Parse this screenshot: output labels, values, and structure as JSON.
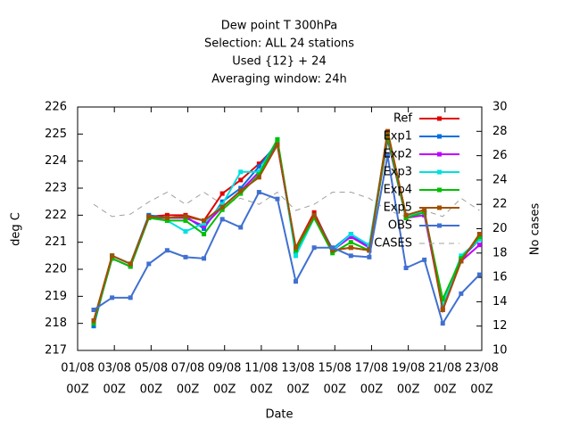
{
  "chart_data": {
    "type": "line",
    "title": [
      "Dew point T 300hPa",
      "Selection: ALL      24 stations",
      "Used {12} + 24",
      "Averaging window: 24h"
    ],
    "xlabel": "Date",
    "ylabel": "deg C",
    "y2label": "No cases",
    "xlim": [
      0,
      22
    ],
    "xticks": [
      {
        "value": 0,
        "label": [
          "01/08",
          "00Z"
        ]
      },
      {
        "value": 2,
        "label": [
          "03/08",
          "00Z"
        ]
      },
      {
        "value": 4,
        "label": [
          "05/08",
          "00Z"
        ]
      },
      {
        "value": 6,
        "label": [
          "07/08",
          "00Z"
        ]
      },
      {
        "value": 8,
        "label": [
          "09/08",
          "00Z"
        ]
      },
      {
        "value": 10,
        "label": [
          "11/08",
          "00Z"
        ]
      },
      {
        "value": 12,
        "label": [
          "13/08",
          "00Z"
        ]
      },
      {
        "value": 14,
        "label": [
          "15/08",
          "00Z"
        ]
      },
      {
        "value": 16,
        "label": [
          "17/08",
          "00Z"
        ]
      },
      {
        "value": 18,
        "label": [
          "19/08",
          "00Z"
        ]
      },
      {
        "value": 20,
        "label": [
          "21/08",
          "00Z"
        ]
      },
      {
        "value": 22,
        "label": [
          "23/08",
          "00Z"
        ]
      }
    ],
    "ylim": [
      217,
      226
    ],
    "yticks": [
      217,
      218,
      219,
      220,
      221,
      222,
      223,
      224,
      225,
      226
    ],
    "y2lim": [
      10,
      30
    ],
    "y2ticks": [
      10,
      12,
      14,
      16,
      18,
      20,
      22,
      24,
      26,
      28,
      30
    ],
    "legend": "top-right",
    "x": [
      0.875,
      1.875,
      2.875,
      3.875,
      4.875,
      5.875,
      6.875,
      7.875,
      8.875,
      9.875,
      10.875,
      11.875,
      12.875,
      13.875,
      14.875,
      15.875,
      16.875,
      17.875,
      18.875,
      19.875,
      20.875,
      21.875
    ],
    "series": [
      {
        "name": "CASES",
        "color": "#a0a0a0",
        "axis": "y2",
        "dashed": true,
        "values": [
          22.0,
          21.0,
          21.2,
          22.2,
          23.0,
          22.0,
          23.0,
          22.0,
          22.5,
          22.0,
          23.0,
          21.5,
          22.0,
          23.0,
          23.0,
          22.5,
          21.5,
          21.0,
          21.5,
          21.0,
          22.5,
          21.5
        ]
      },
      {
        "name": "Ref",
        "color": "#e00000",
        "values": [
          218.1,
          220.5,
          220.2,
          221.95,
          222.0,
          222.0,
          221.8,
          222.8,
          223.3,
          223.9,
          224.6,
          220.8,
          222.1,
          220.7,
          220.8,
          220.7,
          225.1,
          222.0,
          222.1,
          218.5,
          220.3,
          221.3
        ]
      },
      {
        "name": "Exp1",
        "color": "#0070e0",
        "values": [
          217.9,
          220.5,
          220.2,
          222.0,
          221.9,
          221.95,
          221.5,
          222.5,
          223.0,
          223.8,
          224.7,
          220.6,
          222.0,
          220.75,
          221.3,
          220.8,
          225.0,
          222.0,
          222.1,
          218.8,
          220.4,
          221.1
        ]
      },
      {
        "name": "Exp2",
        "color": "#c000ff",
        "values": [
          218.0,
          220.4,
          220.1,
          221.9,
          221.9,
          221.9,
          221.6,
          222.3,
          222.9,
          223.6,
          224.6,
          220.7,
          221.9,
          220.7,
          221.2,
          220.8,
          224.8,
          221.9,
          222.0,
          218.6,
          220.3,
          220.9
        ]
      },
      {
        "name": "Exp3",
        "color": "#00e0e0",
        "values": [
          218.0,
          220.5,
          220.2,
          221.9,
          221.8,
          221.4,
          221.7,
          222.4,
          223.6,
          223.6,
          224.8,
          220.5,
          221.9,
          220.7,
          221.3,
          220.9,
          225.0,
          222.0,
          222.1,
          218.7,
          220.5,
          221.1
        ]
      },
      {
        "name": "Exp4",
        "color": "#00c000",
        "values": [
          218.0,
          220.4,
          220.1,
          221.9,
          221.8,
          221.8,
          221.3,
          222.2,
          222.8,
          223.5,
          224.8,
          220.7,
          221.9,
          220.6,
          221.0,
          220.7,
          224.9,
          221.9,
          222.1,
          218.9,
          220.4,
          221.2
        ]
      },
      {
        "name": "Exp5",
        "color": "#a05000",
        "values": [
          218.1,
          220.5,
          220.2,
          221.95,
          221.9,
          221.95,
          221.8,
          222.3,
          222.9,
          223.4,
          224.6,
          220.8,
          222.0,
          220.7,
          220.8,
          220.7,
          225.1,
          222.0,
          222.2,
          218.5,
          220.3,
          221.3
        ]
      },
      {
        "name": "OBS",
        "color": "#4070d0",
        "values": [
          218.5,
          218.95,
          218.95,
          220.2,
          220.7,
          220.45,
          220.4,
          221.85,
          221.55,
          222.85,
          222.6,
          219.55,
          220.8,
          220.8,
          220.5,
          220.45,
          224.2,
          220.05,
          220.35,
          218.0,
          219.1,
          219.8
        ]
      }
    ]
  }
}
